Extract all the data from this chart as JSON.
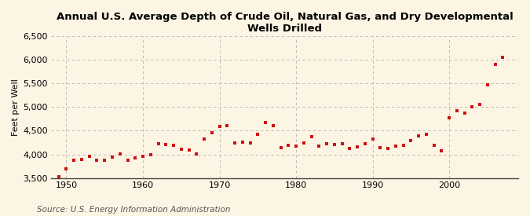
{
  "title": "Annual U.S. Average Depth of Crude Oil, Natural Gas, and Dry Developmental Wells Drilled",
  "ylabel": "Feet per Well",
  "source": "Source: U.S. Energy Information Administration",
  "background_color": "#fdf5e4",
  "plot_background_color": "#fdf5e4",
  "marker_color": "#cc1111",
  "years": [
    1949,
    1950,
    1951,
    1952,
    1953,
    1954,
    1955,
    1956,
    1957,
    1958,
    1959,
    1960,
    1961,
    1962,
    1963,
    1964,
    1965,
    1966,
    1967,
    1968,
    1969,
    1970,
    1971,
    1972,
    1973,
    1974,
    1975,
    1976,
    1977,
    1978,
    1979,
    1980,
    1981,
    1982,
    1983,
    1984,
    1985,
    1986,
    1987,
    1988,
    1989,
    1990,
    1991,
    1992,
    1993,
    1994,
    1995,
    1996,
    1997,
    1998,
    1999,
    2000,
    2001,
    2002,
    2003,
    2004,
    2005,
    2006,
    2007
  ],
  "values": [
    3530,
    3700,
    3870,
    3900,
    3960,
    3870,
    3880,
    3940,
    4010,
    3880,
    3930,
    3960,
    4000,
    4220,
    4210,
    4200,
    4110,
    4100,
    4010,
    4330,
    4460,
    4590,
    4610,
    4250,
    4260,
    4240,
    4430,
    4680,
    4610,
    4150,
    4200,
    4170,
    4250,
    4370,
    4180,
    4220,
    4210,
    4220,
    4120,
    4160,
    4230,
    4330,
    4140,
    4130,
    4180,
    4200,
    4300,
    4400,
    4430,
    4200,
    4080,
    4780,
    4930,
    4870,
    5000,
    5060,
    5480,
    5900,
    6050
  ],
  "ylim": [
    3500,
    6500
  ],
  "yticks": [
    3500,
    4000,
    4500,
    5000,
    5500,
    6000,
    6500
  ],
  "ytick_labels": [
    "3,500",
    "4,000",
    "4,500",
    "5,000",
    "5,500",
    "6,000",
    "6,500"
  ],
  "xticks": [
    1950,
    1960,
    1970,
    1980,
    1990,
    2000
  ],
  "xlim": [
    1948,
    2009
  ],
  "grid_color": "#b0b0b0",
  "title_fontsize": 9.5,
  "axis_fontsize": 8,
  "source_fontsize": 7.5
}
